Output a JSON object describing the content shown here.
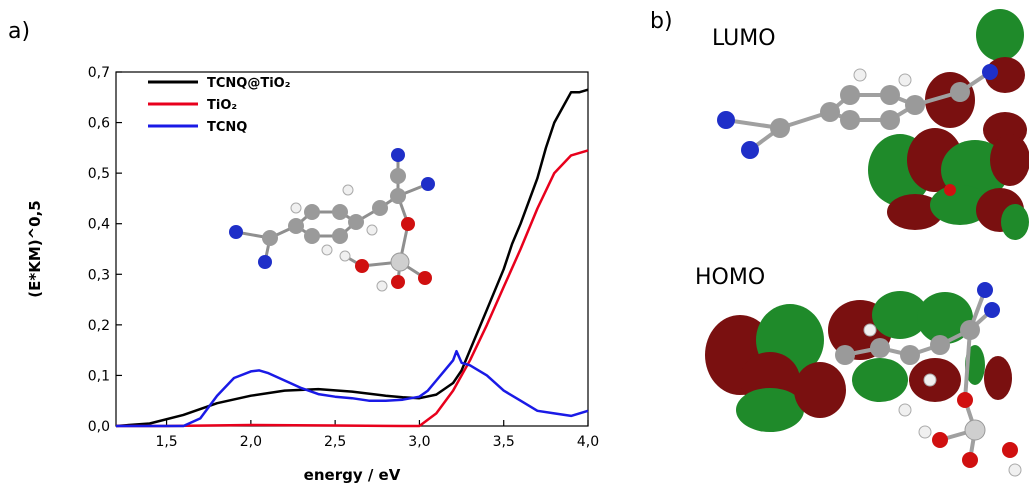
{
  "panels": {
    "a": "a)",
    "b": "b)"
  },
  "chart_data": {
    "type": "line",
    "xlabel": "energy / eV",
    "ylabel": "(E*KM)^0,5",
    "xlim": [
      1.2,
      4.0
    ],
    "ylim": [
      0.0,
      0.7
    ],
    "x_ticks": [
      "1,5",
      "2,0",
      "2,5",
      "3,0",
      "3,5",
      "4,0"
    ],
    "x_tick_values": [
      1.5,
      2.0,
      2.5,
      3.0,
      3.5,
      4.0
    ],
    "y_ticks": [
      "0,0",
      "0,1",
      "0,2",
      "0,3",
      "0,4",
      "0,5",
      "0,6",
      "0,7"
    ],
    "y_tick_values": [
      0.0,
      0.1,
      0.2,
      0.3,
      0.4,
      0.5,
      0.6,
      0.7
    ],
    "grid": false,
    "legend_position": "top-left",
    "series": [
      {
        "name": "TCNQ@TiO₂",
        "color": "#000000",
        "x": [
          1.2,
          1.4,
          1.6,
          1.8,
          2.0,
          2.2,
          2.4,
          2.6,
          2.8,
          2.9,
          3.0,
          3.1,
          3.2,
          3.25,
          3.3,
          3.4,
          3.5,
          3.55,
          3.6,
          3.7,
          3.75,
          3.8,
          3.85,
          3.9,
          3.95,
          4.0
        ],
        "y": [
          0.0,
          0.005,
          0.022,
          0.045,
          0.06,
          0.07,
          0.073,
          0.068,
          0.06,
          0.057,
          0.055,
          0.062,
          0.085,
          0.11,
          0.15,
          0.23,
          0.31,
          0.36,
          0.4,
          0.49,
          0.55,
          0.6,
          0.63,
          0.66,
          0.66,
          0.665
        ]
      },
      {
        "name": "TiO₂",
        "color": "#e8001c",
        "x": [
          1.2,
          1.5,
          2.0,
          2.5,
          2.9,
          3.0,
          3.1,
          3.2,
          3.3,
          3.4,
          3.5,
          3.6,
          3.7,
          3.8,
          3.9,
          4.0
        ],
        "y": [
          0.0,
          0.0,
          0.002,
          0.001,
          0.0,
          0.0,
          0.025,
          0.07,
          0.13,
          0.2,
          0.275,
          0.35,
          0.43,
          0.5,
          0.535,
          0.545
        ]
      },
      {
        "name": "TCNQ",
        "color": "#1a1ae6",
        "x": [
          1.2,
          1.6,
          1.7,
          1.8,
          1.9,
          2.0,
          2.05,
          2.1,
          2.2,
          2.3,
          2.4,
          2.5,
          2.6,
          2.7,
          2.8,
          2.9,
          3.0,
          3.05,
          3.1,
          3.15,
          3.2,
          3.22,
          3.25,
          3.3,
          3.4,
          3.5,
          3.6,
          3.7,
          3.8,
          3.9,
          4.0
        ],
        "y": [
          0.0,
          0.0,
          0.015,
          0.06,
          0.095,
          0.108,
          0.11,
          0.105,
          0.09,
          0.075,
          0.063,
          0.058,
          0.055,
          0.05,
          0.05,
          0.052,
          0.058,
          0.07,
          0.09,
          0.11,
          0.13,
          0.148,
          0.125,
          0.12,
          0.1,
          0.07,
          0.05,
          0.03,
          0.025,
          0.02,
          0.03
        ]
      }
    ]
  },
  "orbitals": {
    "lumo": "LUMO",
    "homo": "HOMO"
  },
  "colors": {
    "carbon": "#9a9a9a",
    "nitrogen": "#1f2fc8",
    "oxygen": "#d01010",
    "hydrogen": "#f0f0f0",
    "titanium": "#cfcfcf",
    "lobe_red": "#7a1010",
    "lobe_green": "#1f8a2a"
  }
}
